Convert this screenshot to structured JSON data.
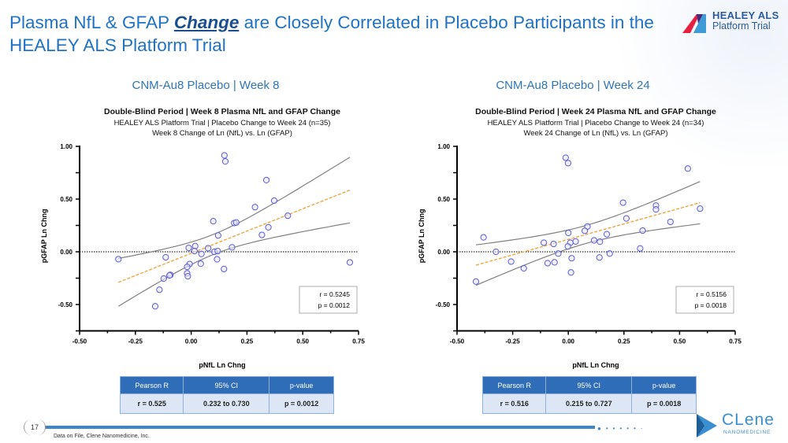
{
  "slide": {
    "title_pre": "Plasma NfL & GFAP ",
    "title_em": "Change",
    "title_post": " are Closely Correlated in Placebo Participants in the HEALEY ALS Platform Trial",
    "logo_line1": "HEALEY ALS",
    "logo_line2": "Platform Trial",
    "page_number": "17",
    "footnote": "Data on File, Clene Nanomedicine, Inc.",
    "footer_logo_name": "CLene",
    "footer_logo_sub": "NANOMEDICINE",
    "colors": {
      "title": "#1f72c4",
      "marker": "#5b5bd6",
      "fit": "#f0a030",
      "ci": "#808080",
      "table_header": "#2f6db8",
      "table_row": "#dce6f4"
    }
  },
  "panels": [
    {
      "subtitle": "CNM-Au8 Placebo | Week 8",
      "table": {
        "headers": [
          "Pearson R",
          "95% CI",
          "p-value"
        ],
        "row": [
          "r = 0.525",
          "0.232 to 0.730",
          "p = 0.0012"
        ]
      }
    },
    {
      "subtitle": "CNM-Au8 Placebo | Week 24",
      "table": {
        "headers": [
          "Pearson R",
          "95% CI",
          "p-value"
        ],
        "row": [
          "r = 0.516",
          "0.215 to 0.727",
          "p = 0.0018"
        ]
      }
    }
  ],
  "chart_data": [
    {
      "type": "scatter",
      "title": "Double-Blind Period | Week 8 Plasma NfL and GFAP Change",
      "subtitle1": "HEALEY ALS Platform Trial | Placebo Change to Week 24 (n=35)",
      "subtitle2": "Week 8 Change of Ln (NfL) vs. Ln (GFAP)",
      "xlabel": "pNfL Ln Chng",
      "ylabel": "pGFAP Ln Chng",
      "xlim": [
        -0.5,
        0.75
      ],
      "ylim": [
        -0.75,
        1.0
      ],
      "xticks": [
        "-0.50",
        "-0.25",
        "0.00",
        "0.25",
        "0.50",
        "0.75"
      ],
      "yticks": [
        "1.00",
        "0.50",
        "0.00",
        "-0.50"
      ],
      "stat_r": "r =  0.5245",
      "stat_p": "p = 0.0012",
      "points": [
        [
          -0.326,
          -0.07
        ],
        [
          0.149,
          0.914
        ],
        [
          0.153,
          0.857
        ],
        [
          0.337,
          0.68
        ],
        [
          0.372,
          0.485
        ],
        [
          0.286,
          0.424
        ],
        [
          0.433,
          0.342
        ],
        [
          0.099,
          0.29
        ],
        [
          0.193,
          0.273
        ],
        [
          0.202,
          0.278
        ],
        [
          0.346,
          0.232
        ],
        [
          0.317,
          0.16
        ],
        [
          0.121,
          0.155
        ],
        [
          -0.011,
          0.037
        ],
        [
          0.018,
          0.054
        ],
        [
          0.076,
          0.034
        ],
        [
          0.015,
          0.007
        ],
        [
          0.183,
          0.042
        ],
        [
          0.104,
          0.0
        ],
        [
          0.119,
          0.007
        ],
        [
          0.046,
          -0.02
        ],
        [
          -0.114,
          -0.052
        ],
        [
          0.116,
          -0.071
        ],
        [
          -0.007,
          -0.116
        ],
        [
          -0.018,
          -0.143
        ],
        [
          0.043,
          -0.113
        ],
        [
          0.147,
          -0.163
        ],
        [
          -0.018,
          -0.204
        ],
        [
          -0.015,
          -0.232
        ],
        [
          -0.093,
          -0.219
        ],
        [
          -0.097,
          -0.224
        ],
        [
          -0.123,
          -0.254
        ],
        [
          -0.142,
          -0.36
        ],
        [
          -0.161,
          -0.517
        ],
        [
          0.711,
          -0.101
        ]
      ]
    },
    {
      "type": "scatter",
      "title": "Double-Blind Period | Week 24 Plasma NfL and GFAP Change",
      "subtitle1": "HEALEY ALS Platform Trial | Placebo Change to Week 24 (n=34)",
      "subtitle2": "Week 24 Change of Ln (NfL) vs. Ln (GFAP)",
      "xlabel": "pNfL Ln Chng",
      "ylabel": "pGFAP Ln Chng",
      "xlim": [
        -0.5,
        0.75
      ],
      "ylim": [
        -0.75,
        1.0
      ],
      "xticks": [
        "-0.50",
        "-0.25",
        "0.00",
        "0.25",
        "0.50",
        "0.75"
      ],
      "yticks": [
        "1.00",
        "0.50",
        "0.00",
        "-0.50"
      ],
      "stat_r": "r =  0.5156",
      "stat_p": "p =  0.0018",
      "points": [
        [
          -0.012,
          0.892
        ],
        [
          -0.001,
          0.841
        ],
        [
          0.537,
          0.789
        ],
        [
          0.246,
          0.466
        ],
        [
          0.394,
          0.439
        ],
        [
          0.394,
          0.402
        ],
        [
          0.592,
          0.409
        ],
        [
          0.261,
          0.316
        ],
        [
          0.459,
          0.284
        ],
        [
          0.086,
          0.24
        ],
        [
          0.074,
          0.199
        ],
        [
          0.334,
          0.201
        ],
        [
          -0.381,
          0.137
        ],
        [
          0.0,
          0.179
        ],
        [
          0.173,
          0.167
        ],
        [
          0.116,
          0.108
        ],
        [
          0.142,
          0.096
        ],
        [
          0.033,
          0.098
        ],
        [
          0.009,
          0.086
        ],
        [
          -0.11,
          0.086
        ],
        [
          -0.066,
          0.074
        ],
        [
          -0.002,
          0.051
        ],
        [
          0.323,
          0.032
        ],
        [
          -0.325,
          0.0
        ],
        [
          -0.045,
          -0.017
        ],
        [
          0.186,
          -0.017
        ],
        [
          0.015,
          -0.061
        ],
        [
          0.14,
          -0.054
        ],
        [
          -0.257,
          -0.093
        ],
        [
          -0.093,
          -0.108
        ],
        [
          -0.062,
          -0.1
        ],
        [
          -0.2,
          -0.157
        ],
        [
          0.012,
          -0.196
        ],
        [
          -0.415,
          -0.282
        ]
      ]
    }
  ]
}
